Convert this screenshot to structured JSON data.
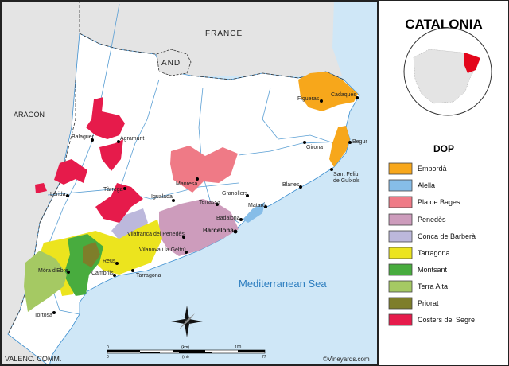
{
  "title": "CATALONIA",
  "legend": {
    "heading": "DOP",
    "items": [
      {
        "label": "Empordà",
        "color": "#f7a71b"
      },
      {
        "label": "Alella",
        "color": "#86bde8"
      },
      {
        "label": "Pla de Bages",
        "color": "#ef7a86"
      },
      {
        "label": "Penedès",
        "color": "#cd9cbc"
      },
      {
        "label": "Conca de Barberà",
        "color": "#bcb8dc"
      },
      {
        "label": "Tarragona",
        "color": "#ece41e"
      },
      {
        "label": "Montsant",
        "color": "#48ac3e"
      },
      {
        "label": "Terra Alta",
        "color": "#a5c963"
      },
      {
        "label": "Priorat",
        "color": "#7e7e2a"
      },
      {
        "label": "Costers del Segre",
        "color": "#e61b4b"
      }
    ]
  },
  "areas": {
    "france": "FRANCE",
    "andorra": "AND",
    "aragon": "ARAGON",
    "valencia": "VALENC. COMM.",
    "sea": "Mediterranean Sea"
  },
  "cities": {
    "figueres": "Figueras",
    "cadaques": "Cadaqués",
    "girona": "Girona",
    "begur": "Begur",
    "sant_feliu_1": "Sant Feliu",
    "sant_feliu_2": "de Guíxols",
    "blanes": "Blanes",
    "granollers": "Granollers",
    "mataro": "Mataró",
    "badalona": "Badalona",
    "barcelona": "Barcelona",
    "terrassa": "Terrassa",
    "manresa": "Manresa",
    "igualada": "Igualada",
    "balaguer": "Balaguer",
    "agramunt": "Agramunt",
    "lleida": "Lérida",
    "tarrega": "Tàrrega",
    "vilafranca": "Vilafranca del Penedès",
    "vilanova": "Vilanova i la Geltrú",
    "reus": "Reus",
    "cambrils": "Cambrils",
    "tarragona": "Tarragona",
    "mora": "Móra d'Ebre",
    "tortosa": "Tortosa"
  },
  "scale": {
    "km_zero": "0",
    "km_unit": "(km)",
    "km_max": "100",
    "mi_zero": "0",
    "mi_unit": "(mi)",
    "mi_max": "77"
  },
  "credit": "©Vineyards.com",
  "colors": {
    "sea": "#cfe7f7",
    "neighbour": "#e4e4e4",
    "river": "#5a9fd4",
    "land": "#ffffff"
  }
}
